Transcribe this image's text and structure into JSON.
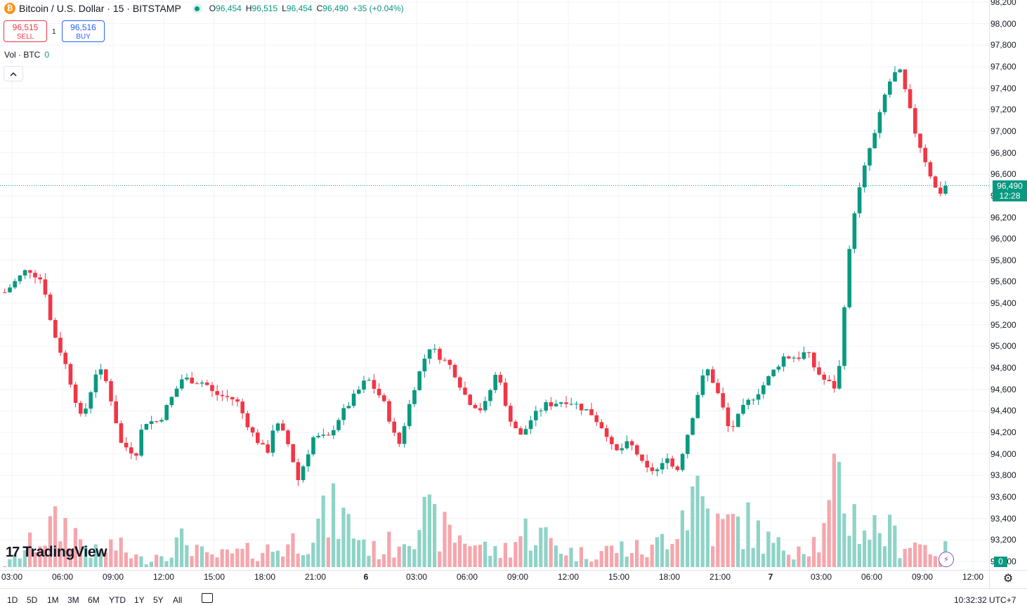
{
  "legend": {
    "coin_icon": "bitcoin-icon",
    "title": "Bitcoin / U.S. Dollar · 15 · BITSTAMP",
    "o_label": "O",
    "o_value": "96,454",
    "h_label": "H",
    "h_value": "96,515",
    "l_label": "L",
    "l_value": "96,454",
    "c_label": "C",
    "c_value": "96,490",
    "change": "+35 (+0.04%)"
  },
  "trade": {
    "sell_price": "96,515",
    "sell_label": "SELL",
    "spread": "1",
    "buy_price": "96,516",
    "buy_label": "BUY"
  },
  "volume_legend": {
    "label": "Vol · BTC",
    "value": "0"
  },
  "collapse_icon": "chevron-up-icon",
  "logo_text": "TradingView",
  "logo_mark": "17",
  "price_axis": [
    "98,200",
    "98,000",
    "97,800",
    "97,600",
    "97,400",
    "97,200",
    "97,000",
    "96,800",
    "96,600",
    "96,400",
    "96,200",
    "96,000",
    "95,800",
    "95,600",
    "95,400",
    "95,200",
    "95,000",
    "94,800",
    "94,600",
    "94,400",
    "94,200",
    "94,000",
    "93,800",
    "93,600",
    "93,400",
    "93,200",
    "93,000"
  ],
  "last_price": {
    "value": "96,490",
    "countdown": "12:28"
  },
  "volume_tag": "0",
  "time_axis": [
    "03:00",
    "06:00",
    "09:00",
    "12:00",
    "15:00",
    "18:00",
    "21:00",
    "6",
    "03:00",
    "06:00",
    "09:00",
    "12:00",
    "15:00",
    "18:00",
    "21:00",
    "7",
    "03:00",
    "06:00",
    "09:00",
    "12:00"
  ],
  "range_buttons": [
    "1D",
    "5D",
    "1M",
    "3M",
    "6M",
    "YTD",
    "1Y",
    "5Y",
    "All"
  ],
  "clock": "10:32:32 UTC+7",
  "colors": {
    "up": "#089981",
    "down": "#f23645",
    "up_vol": "#8fd3c7",
    "down_vol": "#f5a6ac",
    "grid": "#f0f3fa"
  },
  "chart_data": {
    "type": "candlestick",
    "interval": "15",
    "symbol": "Bitcoin / U.S. Dollar",
    "exchange": "BITSTAMP",
    "y_range": [
      93000,
      98200
    ],
    "path": [
      [
        0,
        95500
      ],
      [
        3,
        95720
      ],
      [
        5,
        95600
      ],
      [
        6,
        95200
      ],
      [
        8,
        94800
      ],
      [
        10,
        94300
      ],
      [
        12,
        94800
      ],
      [
        13,
        94700
      ],
      [
        14,
        94450
      ],
      [
        15,
        94100
      ],
      [
        17,
        94000
      ],
      [
        18,
        94300
      ],
      [
        20,
        94300
      ],
      [
        23,
        94700
      ],
      [
        26,
        94660
      ],
      [
        27,
        94560
      ],
      [
        30,
        94500
      ],
      [
        32,
        94200
      ],
      [
        34,
        94000
      ],
      [
        35,
        94300
      ],
      [
        36,
        94200
      ],
      [
        37,
        94050
      ],
      [
        38,
        93750
      ],
      [
        40,
        94150
      ],
      [
        42,
        94150
      ],
      [
        43,
        94300
      ],
      [
        45,
        94500
      ],
      [
        47,
        94700
      ],
      [
        49,
        94500
      ],
      [
        50,
        94300
      ],
      [
        51,
        94050
      ],
      [
        53,
        94600
      ],
      [
        55,
        95000
      ],
      [
        58,
        94800
      ],
      [
        60,
        94500
      ],
      [
        62,
        94400
      ],
      [
        64,
        94800
      ],
      [
        65,
        94400
      ],
      [
        67,
        94150
      ],
      [
        68,
        94300
      ],
      [
        70,
        94450
      ],
      [
        73,
        94500
      ],
      [
        76,
        94380
      ],
      [
        78,
        94200
      ],
      [
        79,
        94000
      ],
      [
        81,
        94100
      ],
      [
        82,
        94000
      ],
      [
        83,
        93850
      ],
      [
        85,
        93850
      ],
      [
        86,
        94000
      ],
      [
        87,
        93800
      ],
      [
        89,
        94300
      ],
      [
        90,
        94600
      ],
      [
        91,
        94800
      ],
      [
        92,
        94650
      ],
      [
        93,
        94450
      ],
      [
        94,
        94200
      ],
      [
        96,
        94450
      ],
      [
        98,
        94600
      ],
      [
        100,
        94800
      ],
      [
        101,
        94900
      ],
      [
        103,
        94900
      ],
      [
        104,
        94950
      ],
      [
        105,
        94800
      ],
      [
        106,
        94700
      ],
      [
        108,
        94600
      ],
      [
        109,
        95500
      ],
      [
        110,
        96200
      ],
      [
        111,
        96500
      ],
      [
        112,
        96800
      ],
      [
        113,
        97000
      ],
      [
        114,
        97300
      ],
      [
        115,
        97500
      ],
      [
        116,
        97560
      ],
      [
        117,
        97300
      ],
      [
        118,
        97000
      ],
      [
        119,
        96800
      ],
      [
        120,
        96600
      ],
      [
        121,
        96400
      ],
      [
        122,
        96490
      ]
    ],
    "volume_path": [
      [
        0,
        2
      ],
      [
        6,
        60
      ],
      [
        8,
        65
      ],
      [
        12,
        20
      ],
      [
        14,
        35
      ],
      [
        18,
        10
      ],
      [
        24,
        45
      ],
      [
        26,
        15
      ],
      [
        36,
        30
      ],
      [
        40,
        60
      ],
      [
        43,
        85
      ],
      [
        48,
        25
      ],
      [
        51,
        40
      ],
      [
        53,
        85
      ],
      [
        57,
        55
      ],
      [
        60,
        45
      ],
      [
        64,
        20
      ],
      [
        68,
        60
      ],
      [
        74,
        20
      ],
      [
        80,
        30
      ],
      [
        84,
        25
      ],
      [
        89,
        110
      ],
      [
        90,
        130
      ],
      [
        92,
        60
      ],
      [
        96,
        70
      ],
      [
        100,
        30
      ],
      [
        104,
        40
      ],
      [
        106,
        40
      ],
      [
        108,
        130
      ],
      [
        110,
        80
      ],
      [
        112,
        60
      ],
      [
        114,
        60
      ],
      [
        116,
        40
      ],
      [
        118,
        40
      ],
      [
        120,
        30
      ],
      [
        122,
        25
      ]
    ]
  }
}
